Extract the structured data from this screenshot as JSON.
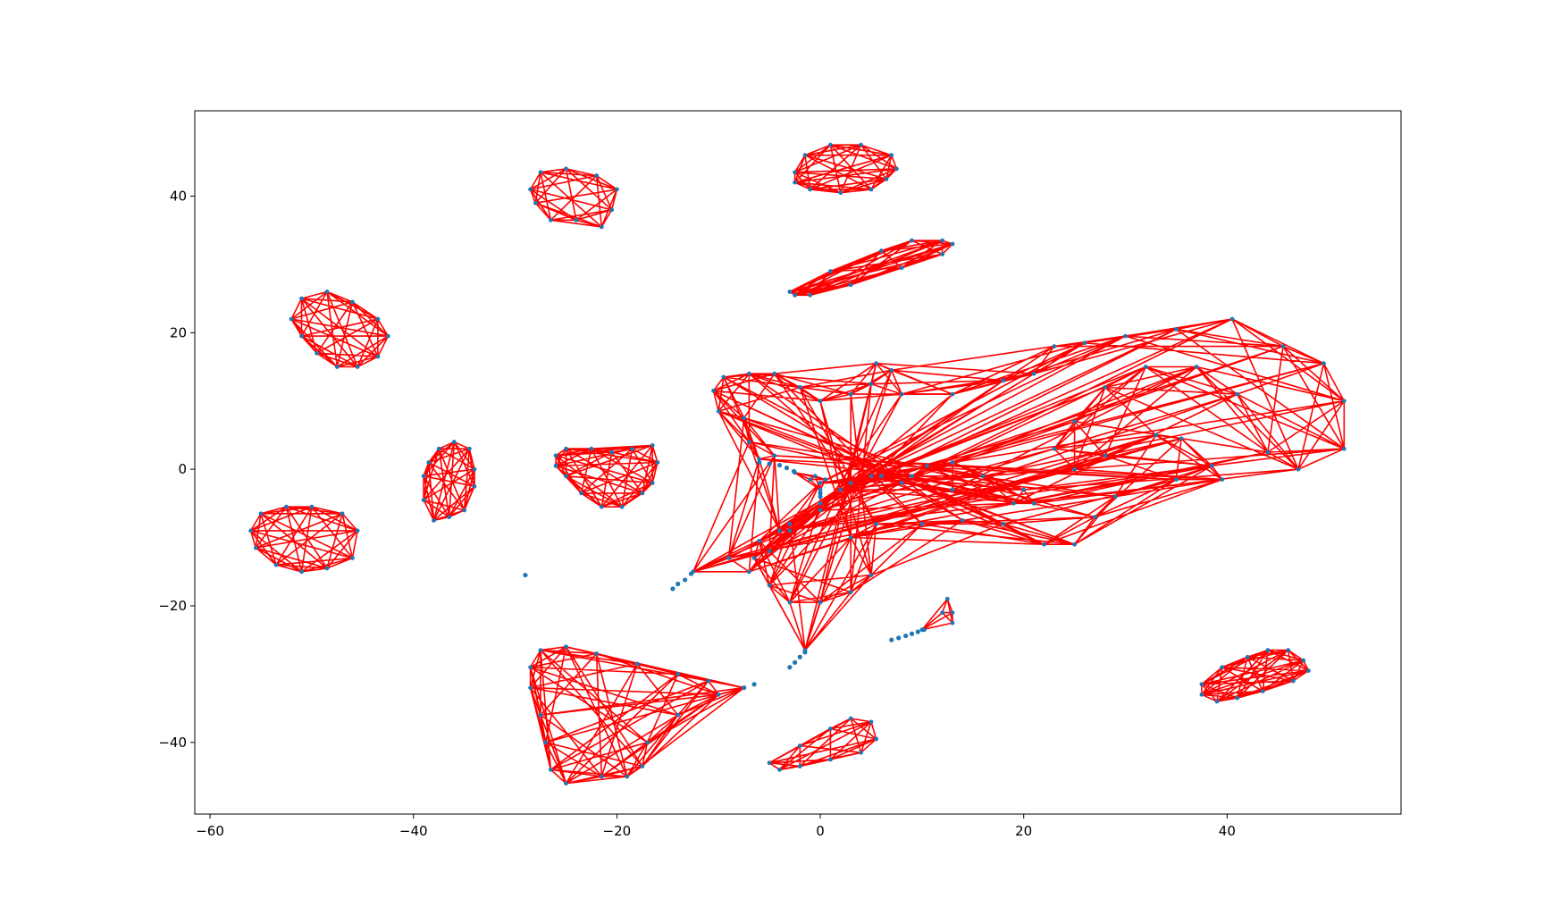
{
  "chart_data": {
    "type": "scatter",
    "title": "",
    "xlabel": "",
    "ylabel": "",
    "xlim": [
      -61.5,
      57.1
    ],
    "ylim": [
      -50.5,
      52.5
    ],
    "grid": false,
    "x_ticks": [
      {
        "value": -60,
        "label": "−60"
      },
      {
        "value": -40,
        "label": "−40"
      },
      {
        "value": -20,
        "label": "−20"
      },
      {
        "value": 0,
        "label": "0"
      },
      {
        "value": 20,
        "label": "20"
      },
      {
        "value": 40,
        "label": "40"
      }
    ],
    "y_ticks": [
      {
        "value": -40,
        "label": "−40"
      },
      {
        "value": -20,
        "label": "−20"
      },
      {
        "value": 0,
        "label": "0"
      },
      {
        "value": 20,
        "label": "20"
      },
      {
        "value": 40,
        "label": "40"
      }
    ],
    "colors": {
      "edges": "#ff0000",
      "points": "#1f77b4"
    },
    "clusters": [
      {
        "name": "c1",
        "outline": [
          [
            -28.5,
            41
          ],
          [
            -27.5,
            43.5
          ],
          [
            -25,
            44
          ],
          [
            -22,
            43
          ],
          [
            -20,
            41
          ],
          [
            -20.5,
            38
          ],
          [
            -21.5,
            35.5
          ],
          [
            -24,
            36.5
          ],
          [
            -26.5,
            36.5
          ],
          [
            -28,
            39
          ]
        ]
      },
      {
        "name": "c2",
        "outline": [
          [
            -2.5,
            43.5
          ],
          [
            -1.5,
            46
          ],
          [
            1,
            47.5
          ],
          [
            4,
            47.5
          ],
          [
            7,
            46
          ],
          [
            7.5,
            44
          ],
          [
            6.5,
            42.5
          ],
          [
            5,
            41
          ],
          [
            2,
            40.5
          ],
          [
            -1,
            41
          ],
          [
            -2.5,
            42
          ]
        ]
      },
      {
        "name": "c3",
        "outline": [
          [
            -3,
            26
          ],
          [
            1,
            29
          ],
          [
            6,
            32
          ],
          [
            9,
            33.5
          ],
          [
            12,
            33.5
          ],
          [
            13,
            33
          ],
          [
            12,
            31.5
          ],
          [
            8,
            29.5
          ],
          [
            3,
            27
          ],
          [
            -1,
            25.5
          ],
          [
            -2.5,
            25.5
          ]
        ]
      },
      {
        "name": "c4",
        "outline": [
          [
            -52,
            22
          ],
          [
            -51,
            25
          ],
          [
            -48.5,
            26
          ],
          [
            -46,
            24.5
          ],
          [
            -43.5,
            22
          ],
          [
            -42.5,
            19.5
          ],
          [
            -43.5,
            16.5
          ],
          [
            -45.5,
            15
          ],
          [
            -47.5,
            15
          ],
          [
            -49.5,
            17
          ],
          [
            -51,
            19.5
          ]
        ]
      },
      {
        "name": "c5",
        "outline": [
          [
            -38.5,
            1
          ],
          [
            -37.5,
            3
          ],
          [
            -36,
            4
          ],
          [
            -34.5,
            3
          ],
          [
            -34,
            0
          ],
          [
            -34,
            -2.5
          ],
          [
            -35,
            -6
          ],
          [
            -36.5,
            -7
          ],
          [
            -38,
            -7.5
          ],
          [
            -39,
            -4.5
          ],
          [
            -39,
            -1
          ]
        ]
      },
      {
        "name": "c6",
        "outline": [
          [
            -26,
            2
          ],
          [
            -25,
            3
          ],
          [
            -22.5,
            3
          ],
          [
            -20.5,
            2.5
          ],
          [
            -18.5,
            3
          ],
          [
            -16.5,
            3.5
          ],
          [
            -16,
            1
          ],
          [
            -16.5,
            -2
          ],
          [
            -17.5,
            -3.5
          ],
          [
            -19.5,
            -5.5
          ],
          [
            -21.5,
            -5.5
          ],
          [
            -23.5,
            -3.5
          ],
          [
            -25,
            -1
          ],
          [
            -26,
            0.5
          ]
        ]
      },
      {
        "name": "c7",
        "outline": [
          [
            -56,
            -9
          ],
          [
            -55,
            -6.5
          ],
          [
            -52.5,
            -5.5
          ],
          [
            -50,
            -5.5
          ],
          [
            -47,
            -6.5
          ],
          [
            -45.5,
            -9
          ],
          [
            -46,
            -13
          ],
          [
            -48.5,
            -14.5
          ],
          [
            -51,
            -15
          ],
          [
            -53.5,
            -14
          ],
          [
            -55.5,
            -11.5
          ]
        ]
      },
      {
        "name": "c8",
        "outline": [
          [
            37.5,
            -31.5
          ],
          [
            39.5,
            -29
          ],
          [
            42,
            -27.5
          ],
          [
            44,
            -26.5
          ],
          [
            46,
            -26.5
          ],
          [
            47.5,
            -28
          ],
          [
            48,
            -29.5
          ],
          [
            46.5,
            -31
          ],
          [
            43.5,
            -32.5
          ],
          [
            41,
            -33.5
          ],
          [
            39,
            -34
          ],
          [
            37.5,
            -33
          ]
        ]
      },
      {
        "name": "c9",
        "outline": [
          [
            -5,
            -43
          ],
          [
            -2,
            -40.5
          ],
          [
            1,
            -38
          ],
          [
            3,
            -36.5
          ],
          [
            5,
            -37
          ],
          [
            5.5,
            -39.5
          ],
          [
            4,
            -41.5
          ],
          [
            1,
            -42.5
          ],
          [
            -2,
            -43.5
          ],
          [
            -4,
            -44
          ]
        ]
      },
      {
        "name": "c10",
        "outline": [
          [
            -28.5,
            -29
          ],
          [
            -27.5,
            -26.5
          ],
          [
            -25,
            -26
          ],
          [
            -22,
            -27
          ],
          [
            -18,
            -28.5
          ],
          [
            -14,
            -30
          ],
          [
            -11,
            -31
          ],
          [
            -7.5,
            -32
          ],
          [
            -10,
            -33
          ],
          [
            -14,
            -36
          ],
          [
            -17,
            -40
          ],
          [
            -17.5,
            -43.5
          ],
          [
            -19,
            -45
          ],
          [
            -21.5,
            -45
          ],
          [
            -25,
            -46
          ],
          [
            -26.5,
            -44
          ],
          [
            -27,
            -40
          ],
          [
            -27.5,
            -36
          ],
          [
            -28.5,
            -32
          ]
        ]
      },
      {
        "name": "c11",
        "outline": [
          [
            -10.5,
            11.5
          ],
          [
            -9.5,
            13.5
          ],
          [
            -7,
            14
          ],
          [
            -4.5,
            14
          ],
          [
            -2,
            12
          ],
          [
            0,
            10
          ],
          [
            3,
            11
          ],
          [
            5,
            12.5
          ],
          [
            5.5,
            15.5
          ],
          [
            7,
            14.5
          ],
          [
            8,
            11
          ],
          [
            13,
            11
          ],
          [
            18,
            13
          ],
          [
            21,
            14
          ],
          [
            23,
            18
          ],
          [
            26,
            18.5
          ],
          [
            30,
            19.5
          ],
          [
            35,
            20.5
          ],
          [
            40.5,
            22
          ],
          [
            45.5,
            18
          ],
          [
            49.5,
            15.5
          ],
          [
            51.5,
            10
          ],
          [
            51.5,
            3
          ],
          [
            47,
            0
          ],
          [
            44,
            2.5
          ],
          [
            41,
            11
          ],
          [
            37,
            15
          ],
          [
            32,
            15
          ],
          [
            28,
            12
          ],
          [
            25,
            7
          ],
          [
            23,
            3
          ],
          [
            25,
            0
          ],
          [
            28,
            2
          ],
          [
            33,
            5
          ],
          [
            35.5,
            4.5
          ],
          [
            38.5,
            0.5
          ],
          [
            39.5,
            -1.5
          ],
          [
            35,
            -1.5
          ],
          [
            29,
            -4
          ],
          [
            27,
            -7
          ],
          [
            25,
            -11
          ],
          [
            22,
            -11
          ],
          [
            18,
            -8
          ],
          [
            14,
            -7.5
          ],
          [
            10,
            -8
          ],
          [
            5.5,
            -8
          ],
          [
            3,
            -10
          ],
          [
            5,
            -15.5
          ],
          [
            3,
            -18
          ],
          [
            0,
            -19.5
          ],
          [
            -1.5,
            -26.5
          ],
          [
            -3,
            -19.5
          ],
          [
            -5,
            -17
          ],
          [
            -6.5,
            -13
          ],
          [
            -6,
            -10.5
          ],
          [
            -3,
            -8
          ],
          [
            0,
            -5
          ],
          [
            0,
            -2
          ],
          [
            3,
            -2
          ],
          [
            6,
            -1
          ],
          [
            9,
            -1
          ],
          [
            10.5,
            0.5
          ],
          [
            13,
            1
          ],
          [
            16,
            -1
          ],
          [
            20,
            -3
          ],
          [
            21,
            -5
          ],
          [
            19,
            -5
          ],
          [
            13,
            -3
          ],
          [
            8,
            -2
          ],
          [
            5,
            -1
          ],
          [
            2,
            -3
          ],
          [
            0,
            -6
          ],
          [
            -3,
            -9
          ],
          [
            -5,
            -12
          ],
          [
            -7,
            -15
          ],
          [
            -12.5,
            -15
          ],
          [
            -9,
            -13
          ],
          [
            -4,
            -9
          ],
          [
            -4.5,
            2
          ],
          [
            -6,
            1.5
          ],
          [
            -7,
            4
          ],
          [
            -7.5,
            7.5
          ],
          [
            -10,
            8.5
          ]
        ]
      },
      {
        "name": "c12",
        "outline": [
          [
            -2.5,
            -0.5
          ],
          [
            -0.5,
            -1
          ],
          [
            0.5,
            -1.5
          ],
          [
            0,
            -3
          ],
          [
            -1,
            -1.5
          ]
        ]
      },
      {
        "name": "c13",
        "outline": [
          [
            10,
            -23.5
          ],
          [
            12,
            -21
          ],
          [
            12.5,
            -19
          ],
          [
            13,
            -21
          ],
          [
            13,
            -22.5
          ]
        ]
      }
    ],
    "stray_points": [
      [
        -29,
        -15.5
      ],
      [
        -14.5,
        -17.5
      ],
      [
        -14,
        -16.8
      ],
      [
        -13.3,
        -16.2
      ],
      [
        -12.7,
        -15.3
      ],
      [
        -7.5,
        -32
      ],
      [
        -6.5,
        -31.5
      ],
      [
        -3,
        -29
      ],
      [
        -2.5,
        -28.3
      ],
      [
        -2,
        -27.5
      ],
      [
        -1.5,
        -26.8
      ],
      [
        -6,
        1
      ],
      [
        -5,
        0.8
      ],
      [
        -4,
        0.6
      ],
      [
        -3.3,
        0.2
      ],
      [
        -2.6,
        -0.3
      ],
      [
        7,
        -25
      ],
      [
        7.7,
        -24.7
      ],
      [
        8.4,
        -24.4
      ],
      [
        9,
        -24.1
      ],
      [
        9.6,
        -23.8
      ],
      [
        10.2,
        -23.5
      ],
      [
        0,
        -3.5
      ],
      [
        0,
        -4
      ]
    ]
  }
}
